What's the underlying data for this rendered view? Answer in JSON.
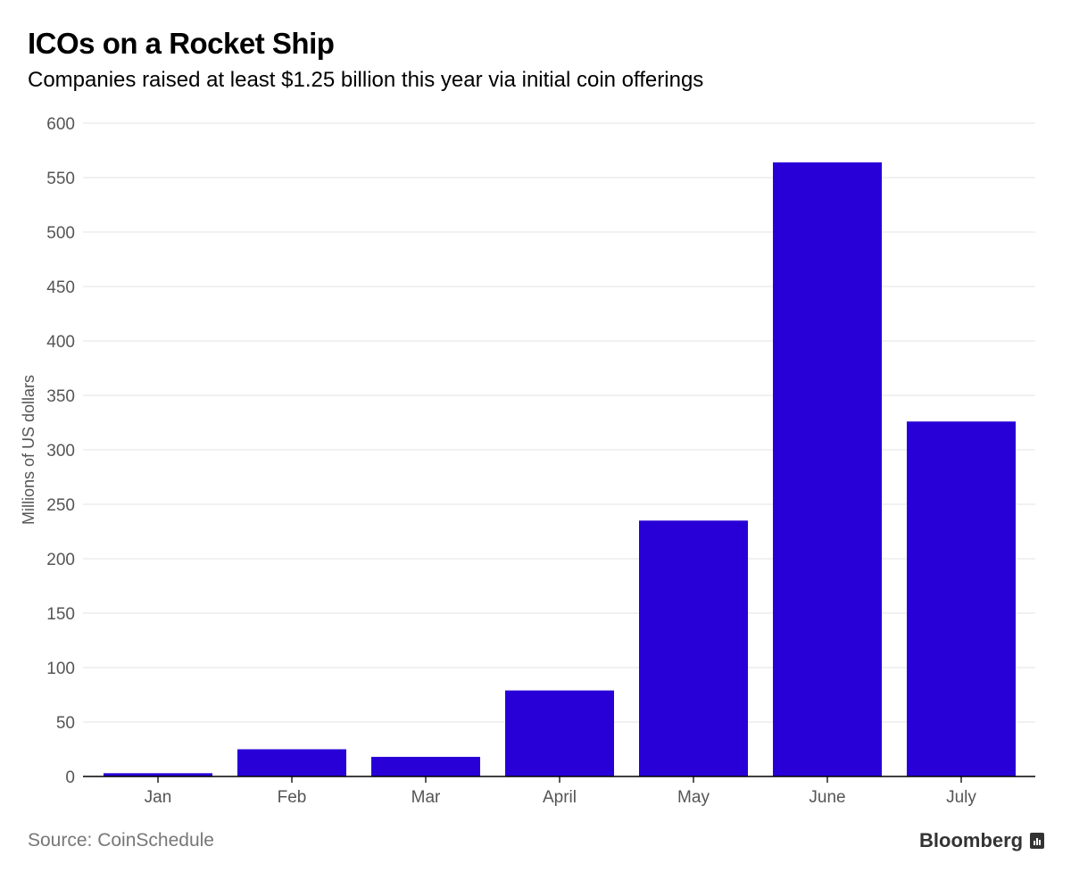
{
  "chart_data": {
    "type": "bar",
    "title": "ICOs on a Rocket Ship",
    "subtitle": "Companies raised at least $1.25 billion this year via initial coin offerings",
    "categories": [
      "Jan",
      "Feb",
      "Mar",
      "April",
      "May",
      "June",
      "July"
    ],
    "values": [
      3,
      25,
      18,
      79,
      235,
      564,
      326
    ],
    "xlabel": "",
    "ylabel": "Millions of US dollars",
    "ylim": [
      0,
      600
    ],
    "yticks": [
      0,
      50,
      100,
      150,
      200,
      250,
      300,
      350,
      400,
      450,
      500,
      550,
      600
    ],
    "grid": true,
    "bar_color": "#2800d7"
  },
  "source": "Source: CoinSchedule",
  "brand": "Bloomberg"
}
